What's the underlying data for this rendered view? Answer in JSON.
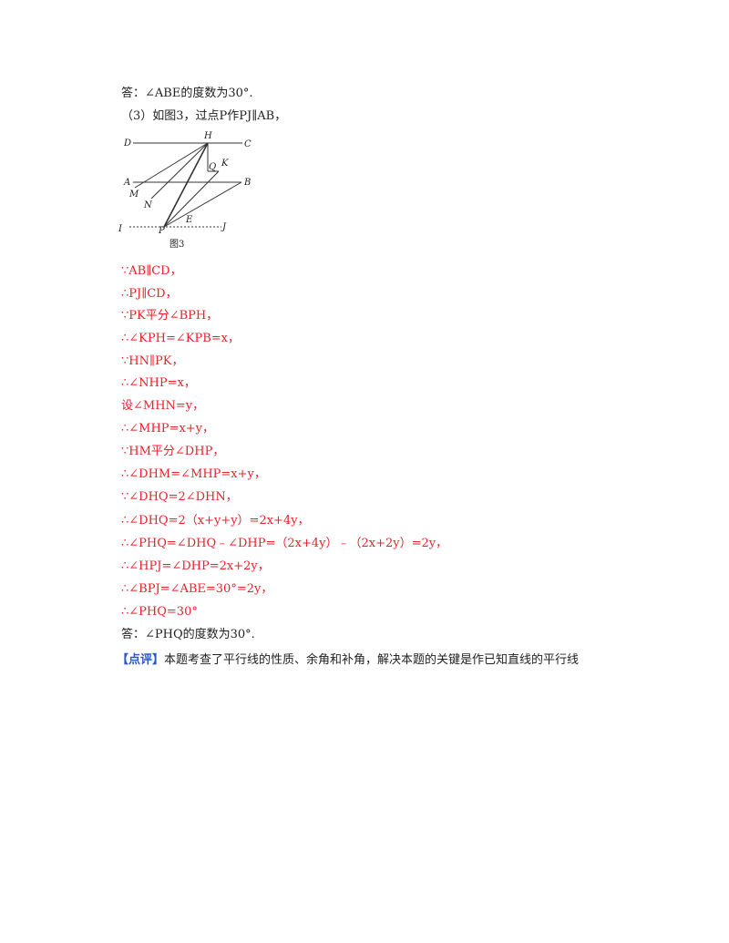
{
  "lines": {
    "answer_abe": "答：∠ABE的度数为30°.",
    "part3_intro": "（3）如图3，过点P作PJ∥AB，",
    "s1": "∵AB∥CD，",
    "s2": "∴PJ∥CD，",
    "s3": "∵PK平分∠BPH，",
    "s4": "∴∠KPH=∠KPB=x，",
    "s5": "∵HN∥PK，",
    "s6": "∴∠NHP=x，",
    "s7": "设∠MHN=y，",
    "s8": "∴∠MHP=x+y，",
    "s9": "∵HM平分∠DHP，",
    "s10": "∴∠DHM=∠MHP=x+y，",
    "s11": "∵∠DHQ=2∠DHN，",
    "s12": "∴∠DHQ=2（x+y+y）=2x+4y，",
    "s13": "∴∠PHQ=∠DHQ﹣∠DHP=（2x+4y）﹣（2x+2y）=2y，",
    "s14": "∴∠HPJ=∠DHP=2x+2y，",
    "s15": "∴∠BPJ=∠ABE=30°=2y，",
    "s16": "∴∠PHQ=30°",
    "answer_phq": "答：∠PHQ的度数为30°.",
    "comment_tag": "【点评】",
    "comment_text": "本题考查了平行线的性质、余角和补角，解决本题的关键是作已知直线的平行线"
  },
  "figure": {
    "caption": "图3",
    "points": {
      "D": "D",
      "C": "C",
      "H": "H",
      "A": "A",
      "B": "B",
      "M": "M",
      "N": "N",
      "Q": "Q",
      "K": "K",
      "I": "I",
      "P": "P",
      "E": "E",
      "J": "J"
    }
  }
}
